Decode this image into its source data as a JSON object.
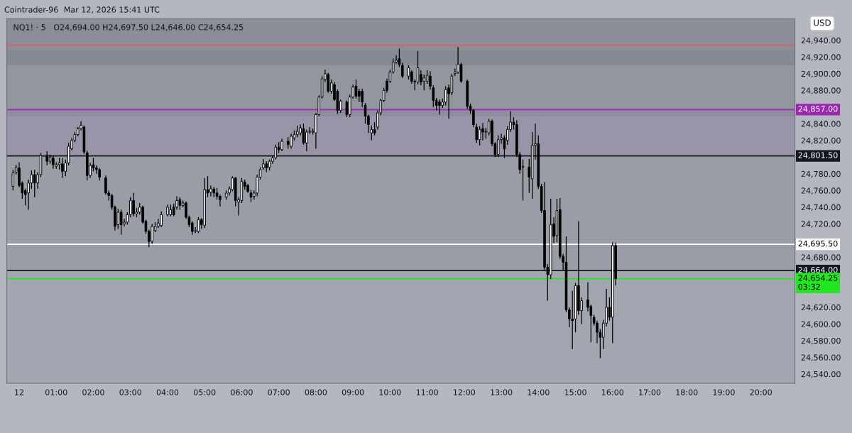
{
  "chart_data": {
    "type": "candlestick",
    "title": "NQ1! · 5",
    "subtitle": "O24,694.00 H24,697.50 L24,646.00 C24,654.25",
    "annotations": [
      "Cointrader-96",
      "Mar 12, 2026 15:41 UTC",
      "USD"
    ],
    "x": [
      "2026-03-11T23:50",
      "2026-03-11T23:55",
      "2026-03-12T00:00",
      "2026-03-12T00:05",
      "2026-03-12T00:10",
      "2026-03-12T00:15",
      "2026-03-12T00:20",
      "2026-03-12T00:25",
      "2026-03-12T00:30",
      "2026-03-12T00:35",
      "2026-03-12T00:45",
      "2026-03-12T00:50",
      "2026-03-12T00:55",
      "2026-03-12T01:00",
      "2026-03-12T01:05",
      "2026-03-12T01:10",
      "2026-03-12T01:15",
      "2026-03-12T01:20",
      "2026-03-12T01:25",
      "2026-03-12T01:30",
      "2026-03-12T01:35",
      "2026-03-12T01:40",
      "2026-03-12T01:45",
      "2026-03-12T01:50",
      "2026-03-12T01:55",
      "2026-03-12T02:00",
      "2026-03-12T02:05",
      "2026-03-12T02:10",
      "2026-03-12T02:20",
      "2026-03-12T02:25",
      "2026-03-12T02:30",
      "2026-03-12T02:35",
      "2026-03-12T02:40",
      "2026-03-12T02:45",
      "2026-03-12T02:50",
      "2026-03-12T02:55",
      "2026-03-12T03:00",
      "2026-03-12T03:05",
      "2026-03-12T03:10",
      "2026-03-12T03:15",
      "2026-03-12T03:20",
      "2026-03-12T03:25",
      "2026-03-12T03:30",
      "2026-03-12T03:35",
      "2026-03-12T03:40",
      "2026-03-12T03:45",
      "2026-03-12T03:50",
      "2026-03-12T04:00",
      "2026-03-12T04:05",
      "2026-03-12T04:10",
      "2026-03-12T04:15",
      "2026-03-12T04:20",
      "2026-03-12T04:25",
      "2026-03-12T04:30",
      "2026-03-12T04:35",
      "2026-03-12T04:40",
      "2026-03-12T04:45",
      "2026-03-12T04:50",
      "2026-03-12T04:55",
      "2026-03-12T05:00",
      "2026-03-12T05:05",
      "2026-03-12T05:10",
      "2026-03-12T05:15",
      "2026-03-12T05:20",
      "2026-03-12T05:25",
      "2026-03-12T05:35",
      "2026-03-12T05:40",
      "2026-03-12T05:45",
      "2026-03-12T05:50",
      "2026-03-12T05:55",
      "2026-03-12T06:00",
      "2026-03-12T06:05",
      "2026-03-12T06:10",
      "2026-03-12T06:15",
      "2026-03-12T06:20",
      "2026-03-12T06:25",
      "2026-03-12T06:30",
      "2026-03-12T06:35",
      "2026-03-12T06:40",
      "2026-03-12T06:45",
      "2026-03-12T06:50",
      "2026-03-12T06:55",
      "2026-03-12T07:00",
      "2026-03-12T07:05",
      "2026-03-12T07:15",
      "2026-03-12T07:20",
      "2026-03-12T07:25",
      "2026-03-12T07:30",
      "2026-03-12T07:35",
      "2026-03-12T07:40",
      "2026-03-12T07:45",
      "2026-03-12T07:50",
      "2026-03-12T07:55",
      "2026-03-12T08:00",
      "2026-03-12T08:05",
      "2026-03-12T08:10",
      "2026-03-12T08:15",
      "2026-03-12T08:20",
      "2026-03-12T08:25",
      "2026-03-12T08:30",
      "2026-03-12T08:35",
      "2026-03-12T08:40",
      "2026-03-12T08:50",
      "2026-03-12T08:55",
      "2026-03-12T09:00",
      "2026-03-12T09:05",
      "2026-03-12T09:10",
      "2026-03-12T09:15",
      "2026-03-12T09:20",
      "2026-03-12T09:25",
      "2026-03-12T09:30",
      "2026-03-12T09:35",
      "2026-03-12T09:40",
      "2026-03-12T09:45",
      "2026-03-12T09:50",
      "2026-03-12T09:55",
      "2026-03-12T10:00",
      "2026-03-12T10:05",
      "2026-03-12T10:10",
      "2026-03-12T10:15",
      "2026-03-12T10:20",
      "2026-03-12T10:30",
      "2026-03-12T10:35",
      "2026-03-12T10:40",
      "2026-03-12T10:45",
      "2026-03-12T10:50",
      "2026-03-12T10:55",
      "2026-03-12T11:00",
      "2026-03-12T11:05",
      "2026-03-12T11:10",
      "2026-03-12T11:15",
      "2026-03-12T11:20",
      "2026-03-12T11:25",
      "2026-03-12T11:30",
      "2026-03-12T11:35",
      "2026-03-12T11:40",
      "2026-03-12T11:45",
      "2026-03-12T11:50",
      "2026-03-12T11:55",
      "2026-03-12T12:05",
      "2026-03-12T12:10",
      "2026-03-12T12:15",
      "2026-03-12T12:20",
      "2026-03-12T12:25",
      "2026-03-12T12:30",
      "2026-03-12T12:35",
      "2026-03-12T12:40",
      "2026-03-12T12:45",
      "2026-03-12T12:50",
      "2026-03-12T12:55",
      "2026-03-12T13:00",
      "2026-03-12T13:05",
      "2026-03-12T13:10",
      "2026-03-12T13:15",
      "2026-03-12T13:20",
      "2026-03-12T13:25",
      "2026-03-12T13:30",
      "2026-03-12T13:35",
      "2026-03-12T13:45",
      "2026-03-12T13:50",
      "2026-03-12T13:55",
      "2026-03-12T14:00",
      "2026-03-12T14:05",
      "2026-03-12T14:10",
      "2026-03-12T14:15",
      "2026-03-12T14:20",
      "2026-03-12T14:25",
      "2026-03-12T14:30",
      "2026-03-12T14:35",
      "2026-03-12T14:40",
      "2026-03-12T14:45",
      "2026-03-12T14:50",
      "2026-03-12T14:55",
      "2026-03-12T15:00",
      "2026-03-12T15:05",
      "2026-03-12T15:10",
      "2026-03-12T15:20",
      "2026-03-12T15:25",
      "2026-03-12T15:30",
      "2026-03-12T15:35",
      "2026-03-12T15:40",
      "2026-03-12T15:45",
      "2026-03-12T15:50",
      "2026-03-12T15:55",
      "2026-03-12T16:00",
      "2026-03-12T16:05"
    ],
    "ohlc": [
      [
        24765,
        24785,
        24760,
        24781
      ],
      [
        24782,
        24791,
        24779,
        24788
      ],
      [
        24787,
        24794,
        24764,
        24766
      ],
      [
        24769,
        24771,
        24750,
        24757
      ],
      [
        24760,
        24762,
        24742,
        24755
      ],
      [
        24757,
        24773,
        24737,
        24769
      ],
      [
        24769,
        24784,
        24762,
        24779
      ],
      [
        24779,
        24785,
        24752,
        24769
      ],
      [
        24769,
        24782,
        24762,
        24779
      ],
      [
        24779,
        24805,
        24776,
        24802
      ],
      [
        24802,
        24807,
        24790,
        24795
      ],
      [
        24795,
        24803,
        24792,
        24800
      ],
      [
        24799,
        24802,
        24786,
        24791
      ],
      [
        24789,
        24794,
        24786,
        24791
      ],
      [
        24791,
        24799,
        24785,
        24793
      ],
      [
        24792,
        24799,
        24775,
        24783
      ],
      [
        24783,
        24797,
        24777,
        24793
      ],
      [
        24793,
        24817,
        24790,
        24813
      ],
      [
        24810,
        24823,
        24808,
        24820
      ],
      [
        24820,
        24830,
        24818,
        24827
      ],
      [
        24827,
        24836,
        24825,
        24834
      ],
      [
        24834,
        24843,
        24832,
        24838
      ],
      [
        24836,
        24838,
        24804,
        24806
      ],
      [
        24805,
        24808,
        24772,
        24778
      ],
      [
        24778,
        24793,
        24775,
        24790
      ],
      [
        24791,
        24799,
        24783,
        24787
      ],
      [
        24787,
        24790,
        24780,
        24785
      ],
      [
        24785,
        24787,
        24772,
        24776
      ],
      [
        24775,
        24778,
        24755,
        24757
      ],
      [
        24757,
        24760,
        24748,
        24754
      ],
      [
        24754,
        24756,
        24737,
        24740
      ],
      [
        24740,
        24742,
        24712,
        24717
      ],
      [
        24719,
        24738,
        24714,
        24734
      ],
      [
        24734,
        24737,
        24707,
        24719
      ],
      [
        24720,
        24726,
        24717,
        24722
      ],
      [
        24722,
        24734,
        24719,
        24731
      ],
      [
        24731,
        24752,
        24728,
        24748
      ],
      [
        24748,
        24757,
        24729,
        24732
      ],
      [
        24732,
        24739,
        24728,
        24734
      ],
      [
        24734,
        24745,
        24731,
        24740
      ],
      [
        24740,
        24742,
        24720,
        24722
      ],
      [
        24723,
        24725,
        24708,
        24711
      ],
      [
        24711,
        24713,
        24692,
        24699
      ],
      [
        24699,
        24720,
        24696,
        24717
      ],
      [
        24712,
        24722,
        24710,
        24717
      ],
      [
        24717,
        24726,
        24715,
        24721
      ],
      [
        24718,
        24735,
        24716,
        24731
      ],
      [
        24731,
        24743,
        24729,
        24740
      ],
      [
        24731,
        24743,
        24729,
        24737
      ],
      [
        24740,
        24744,
        24729,
        24731
      ],
      [
        24740,
        24753,
        24737,
        24748
      ],
      [
        24749,
        24752,
        24737,
        24742
      ],
      [
        24742,
        24748,
        24740,
        24745
      ],
      [
        24745,
        24747,
        24726,
        24728
      ],
      [
        24728,
        24730,
        24716,
        24719
      ],
      [
        24721,
        24723,
        24707,
        24711
      ],
      [
        24711,
        24716,
        24709,
        24712
      ],
      [
        24711,
        24728,
        24709,
        24725
      ],
      [
        24725,
        24727,
        24714,
        24719
      ],
      [
        24718,
        24775,
        24715,
        24761
      ],
      [
        24761,
        24777,
        24752,
        24757
      ],
      [
        24758,
        24766,
        24753,
        24762
      ],
      [
        24762,
        24764,
        24752,
        24757
      ],
      [
        24757,
        24763,
        24749,
        24753
      ],
      [
        24753,
        24755,
        24741,
        24749
      ],
      [
        24752,
        24760,
        24749,
        24757
      ],
      [
        24757,
        24765,
        24754,
        24762
      ],
      [
        24761,
        24777,
        24759,
        24775
      ],
      [
        24775,
        24776,
        24741,
        24748
      ],
      [
        24746,
        24752,
        24730,
        24749
      ],
      [
        24748,
        24775,
        24745,
        24771
      ],
      [
        24770,
        24773,
        24761,
        24765
      ],
      [
        24766,
        24768,
        24757,
        24759
      ],
      [
        24757,
        24761,
        24746,
        24752
      ],
      [
        24753,
        24760,
        24749,
        24757
      ],
      [
        24757,
        24779,
        24753,
        24776
      ],
      [
        24776,
        24788,
        24773,
        24785
      ],
      [
        24787,
        24798,
        24785,
        24792
      ],
      [
        24792,
        24795,
        24782,
        24787
      ],
      [
        24788,
        24797,
        24784,
        24795
      ],
      [
        24795,
        24802,
        24792,
        24799
      ],
      [
        24799,
        24815,
        24797,
        24812
      ],
      [
        24812,
        24818,
        24805,
        24809
      ],
      [
        24809,
        24822,
        24807,
        24819
      ],
      [
        24819,
        24824,
        24810,
        24815
      ],
      [
        24813,
        24828,
        24810,
        24825
      ],
      [
        24823,
        24832,
        24820,
        24827
      ],
      [
        24827,
        24838,
        24824,
        24831
      ],
      [
        24829,
        24839,
        24826,
        24835
      ],
      [
        24834,
        24840,
        24815,
        24817
      ],
      [
        24817,
        24833,
        24807,
        24830
      ],
      [
        24830,
        24836,
        24828,
        24831
      ],
      [
        24830,
        24834,
        24827,
        24831
      ],
      [
        24829,
        24853,
        24810,
        24851
      ],
      [
        24851,
        24874,
        24849,
        24872
      ],
      [
        24872,
        24897,
        24870,
        24894
      ],
      [
        24893,
        24905,
        24890,
        24900
      ],
      [
        24899,
        24901,
        24877,
        24879
      ],
      [
        24879,
        24893,
        24876,
        24889
      ],
      [
        24887,
        24890,
        24867,
        24869
      ],
      [
        24879,
        24881,
        24852,
        24856
      ],
      [
        24856,
        24869,
        24853,
        24867
      ],
      [
        24866,
        24868,
        24848,
        24851
      ],
      [
        24851,
        24875,
        24848,
        24872
      ],
      [
        24872,
        24887,
        24870,
        24884
      ],
      [
        24885,
        24893,
        24870,
        24873
      ],
      [
        24879,
        24882,
        24866,
        24873
      ],
      [
        24879,
        24882,
        24860,
        24866
      ],
      [
        24862,
        24865,
        24840,
        24849
      ],
      [
        24849,
        24851,
        24829,
        24839
      ],
      [
        24829,
        24838,
        24820,
        24833
      ],
      [
        24833,
        24842,
        24826,
        24829
      ],
      [
        24836,
        24856,
        24833,
        24853
      ],
      [
        24853,
        24870,
        24850,
        24868
      ],
      [
        24868,
        24883,
        24866,
        24880
      ],
      [
        24891,
        24894,
        24877,
        24880
      ],
      [
        24891,
        24905,
        24889,
        24902
      ],
      [
        24902,
        24918,
        24900,
        24914
      ],
      [
        24914,
        24922,
        24912,
        24916
      ],
      [
        24918,
        24930,
        24908,
        24911
      ],
      [
        24910,
        24913,
        24895,
        24897
      ],
      [
        24897,
        24910,
        24893,
        24907
      ],
      [
        24902,
        24904,
        24888,
        24891
      ],
      [
        24891,
        24893,
        24880,
        24890
      ],
      [
        24890,
        24927,
        24887,
        24907
      ],
      [
        24899,
        24904,
        24886,
        24890
      ],
      [
        24891,
        24899,
        24880,
        24895
      ],
      [
        24891,
        24904,
        24888,
        24898
      ],
      [
        24897,
        24903,
        24881,
        24885
      ],
      [
        24883,
        24886,
        24860,
        24868
      ],
      [
        24868,
        24871,
        24856,
        24862
      ],
      [
        24866,
        24869,
        24851,
        24862
      ],
      [
        24862,
        24870,
        24859,
        24866
      ],
      [
        24866,
        24885,
        24862,
        24881
      ],
      [
        24883,
        24887,
        24846,
        24876
      ],
      [
        24877,
        24900,
        24874,
        24897
      ],
      [
        24900,
        24906,
        24897,
        24902
      ],
      [
        24902,
        24932,
        24900,
        24911
      ],
      [
        24911,
        24913,
        24889,
        24891
      ],
      [
        24891,
        24893,
        24858,
        24861
      ],
      [
        24861,
        24864,
        24852,
        24856
      ],
      [
        24856,
        24858,
        24836,
        24839
      ],
      [
        24836,
        24840,
        24817,
        24821
      ],
      [
        24821,
        24837,
        24814,
        24833
      ],
      [
        24834,
        24841,
        24820,
        24830
      ],
      [
        24830,
        24835,
        24822,
        24831
      ],
      [
        24829,
        24846,
        24826,
        24843
      ],
      [
        24843,
        24845,
        24813,
        24816
      ],
      [
        24816,
        24818,
        24800,
        24803
      ],
      [
        24803,
        24826,
        24800,
        24821
      ],
      [
        24821,
        24828,
        24816,
        24823
      ],
      [
        24823,
        24826,
        24799,
        24810
      ],
      [
        24820,
        24837,
        24815,
        24833
      ],
      [
        24833,
        24855,
        24830,
        24842
      ],
      [
        24842,
        24848,
        24833,
        24839
      ],
      [
        24839,
        24844,
        24800,
        24803
      ],
      [
        24803,
        24806,
        24780,
        24785
      ],
      [
        24788,
        24797,
        24748,
        24789
      ],
      [
        24788,
        24798,
        24757,
        24776
      ],
      [
        24774,
        24830,
        24750,
        24814
      ],
      [
        24814,
        24840,
        24797,
        24816
      ],
      [
        24816,
        24826,
        24762,
        24765
      ],
      [
        24765,
        24768,
        24733,
        24736
      ],
      [
        24736,
        24770,
        24665,
        24668
      ],
      [
        24668,
        24672,
        24628,
        24659
      ],
      [
        24659,
        24750,
        24654,
        24719
      ],
      [
        24720,
        24728,
        24697,
        24705
      ],
      [
        24706,
        24750,
        24698,
        24736
      ],
      [
        24737,
        24751,
        24678,
        24681
      ],
      [
        24681,
        24684,
        24665,
        24674
      ],
      [
        24674,
        24705,
        24614,
        24617
      ],
      [
        24617,
        24620,
        24596,
        24606
      ],
      [
        24606,
        24640,
        24570,
        24604
      ],
      [
        24606,
        24649,
        24590,
        24646
      ],
      [
        24646,
        24723,
        24611,
        24616
      ],
      [
        24616,
        24632,
        24600,
        24628
      ],
      [
        24629,
        24650,
        24615,
        24620
      ],
      [
        24621,
        24623,
        24578,
        24610
      ],
      [
        24608,
        24611,
        24598,
        24601
      ],
      [
        24601,
        24604,
        24577,
        24590
      ],
      [
        24590,
        24594,
        24559,
        24584
      ],
      [
        24584,
        24605,
        24570,
        24601
      ],
      [
        24601,
        24642,
        24597,
        24620
      ],
      [
        24620,
        24632,
        24604,
        24608
      ],
      [
        24608,
        24698,
        24577,
        24694
      ],
      [
        24694,
        24697.5,
        24646,
        24654.25
      ]
    ],
    "xlim": [
      "2026-03-11T23:40",
      "2026-03-12T20:55"
    ],
    "xticks": [
      {
        "value": "2026-03-12T00:00",
        "label": "12"
      },
      {
        "value": "2026-03-12T01:00",
        "label": "01:00"
      },
      {
        "value": "2026-03-12T02:00",
        "label": "02:00"
      },
      {
        "value": "2026-03-12T03:00",
        "label": "03:00"
      },
      {
        "value": "2026-03-12T04:00",
        "label": "04:00"
      },
      {
        "value": "2026-03-12T05:00",
        "label": "05:00"
      },
      {
        "value": "2026-03-12T06:00",
        "label": "06:00"
      },
      {
        "value": "2026-03-12T07:00",
        "label": "07:00"
      },
      {
        "value": "2026-03-12T08:00",
        "label": "08:00"
      },
      {
        "value": "2026-03-12T09:00",
        "label": "09:00"
      },
      {
        "value": "2026-03-12T10:00",
        "label": "10:00"
      },
      {
        "value": "2026-03-12T11:00",
        "label": "11:00"
      },
      {
        "value": "2026-03-12T12:00",
        "label": "12:00"
      },
      {
        "value": "2026-03-12T13:00",
        "label": "13:00"
      },
      {
        "value": "2026-03-12T14:00",
        "label": "14:00"
      },
      {
        "value": "2026-03-12T15:00",
        "label": "15:00"
      },
      {
        "value": "2026-03-12T16:00",
        "label": "16:00"
      },
      {
        "value": "2026-03-12T17:00",
        "label": "17:00"
      },
      {
        "value": "2026-03-12T18:00",
        "label": "18:00"
      },
      {
        "value": "2026-03-12T19:00",
        "label": "19:00"
      },
      {
        "value": "2026-03-12T20:00",
        "label": "20:00"
      }
    ],
    "ylim": [
      24529,
      24966
    ],
    "yticks": [
      {
        "value": 24540,
        "label": "24,540.00"
      },
      {
        "value": 24560,
        "label": "24,560.00"
      },
      {
        "value": 24580,
        "label": "24,580.00"
      },
      {
        "value": 24600,
        "label": "24,600.00"
      },
      {
        "value": 24620,
        "label": "24,620.00"
      },
      {
        "value": 24680,
        "label": "24,680.00"
      },
      {
        "value": 24720,
        "label": "24,720.00"
      },
      {
        "value": 24740,
        "label": "24,740.00"
      },
      {
        "value": 24760,
        "label": "24,760.00"
      },
      {
        "value": 24780,
        "label": "24,780.00"
      },
      {
        "value": 24820,
        "label": "24,820.00"
      },
      {
        "value": 24840,
        "label": "24,840.00"
      },
      {
        "value": 24880,
        "label": "24,880.00"
      },
      {
        "value": 24900,
        "label": "24,900.00"
      },
      {
        "value": 24920,
        "label": "24,920.00"
      },
      {
        "value": 24940,
        "label": "24,940.00"
      }
    ],
    "bands": [
      {
        "axis": "y",
        "from": 24910,
        "to": 24966,
        "color": "#6e717a"
      },
      {
        "axis": "y",
        "from": 24849,
        "to": 24928,
        "color": "#7f828b"
      },
      {
        "axis": "y",
        "from": 24801.5,
        "to": 24857,
        "color": "#8e7f9e"
      },
      {
        "axis": "y",
        "from": 24664,
        "to": 24801.5,
        "color": "#8f929b"
      }
    ],
    "ref_lines": [
      {
        "axis": "y",
        "value": 24934,
        "color": "#e0606a",
        "line_style": "solid"
      },
      {
        "axis": "y",
        "value": 24857,
        "label": "24,857.00",
        "color": "#9c27b0"
      },
      {
        "axis": "y",
        "value": 24801.5,
        "label": "24,801.50",
        "color": "#131722",
        "line_style": "solid"
      },
      {
        "axis": "y",
        "value": 24695.5,
        "label": "24,695.50",
        "color": "#ffffff",
        "line_style": "solid"
      },
      {
        "axis": "y",
        "value": 24664,
        "label": "24,664.00",
        "color": "#131722"
      },
      {
        "axis": "y",
        "value": 24654.25,
        "label": "24,654.25\n03:32",
        "color": "#22e622",
        "line_style": "solid"
      }
    ],
    "grid": false
  }
}
